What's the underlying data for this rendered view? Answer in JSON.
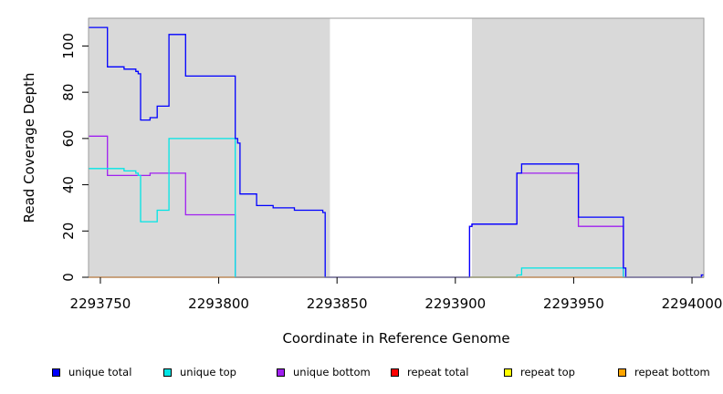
{
  "chart_data": {
    "type": "line",
    "xlabel": "Coordinate in Reference Genome",
    "ylabel": "Read Coverage Depth",
    "xlim": [
      2293745,
      2294005
    ],
    "ylim": [
      0,
      112
    ],
    "x_ticks": [
      2293750,
      2293800,
      2293850,
      2293900,
      2293950,
      2294000
    ],
    "y_ticks": [
      0,
      20,
      40,
      60,
      80,
      100
    ],
    "shaded_regions": [
      [
        2293745,
        2293847
      ],
      [
        2293907,
        2294005
      ]
    ],
    "shade_color": "#d9d9d9",
    "series": [
      {
        "name": "unique total",
        "color": "#0000ff",
        "style": "step",
        "points": [
          [
            2293745,
            108
          ],
          [
            2293753,
            108
          ],
          [
            2293753,
            91
          ],
          [
            2293760,
            91
          ],
          [
            2293760,
            90
          ],
          [
            2293765,
            90
          ],
          [
            2293765,
            89
          ],
          [
            2293766,
            89
          ],
          [
            2293766,
            88
          ],
          [
            2293767,
            88
          ],
          [
            2293767,
            68
          ],
          [
            2293771,
            68
          ],
          [
            2293771,
            69
          ],
          [
            2293774,
            69
          ],
          [
            2293774,
            74
          ],
          [
            2293779,
            74
          ],
          [
            2293779,
            105
          ],
          [
            2293786,
            105
          ],
          [
            2293786,
            87
          ],
          [
            2293807,
            87
          ],
          [
            2293807,
            60
          ],
          [
            2293808,
            60
          ],
          [
            2293808,
            58
          ],
          [
            2293809,
            58
          ],
          [
            2293809,
            36
          ],
          [
            2293816,
            36
          ],
          [
            2293816,
            31
          ],
          [
            2293823,
            31
          ],
          [
            2293823,
            30
          ],
          [
            2293832,
            30
          ],
          [
            2293832,
            29
          ],
          [
            2293844,
            29
          ],
          [
            2293844,
            28
          ],
          [
            2293845,
            28
          ],
          [
            2293845,
            0
          ],
          [
            2293906,
            0
          ],
          [
            2293906,
            22
          ],
          [
            2293907,
            22
          ],
          [
            2293907,
            23
          ],
          [
            2293926,
            23
          ],
          [
            2293926,
            45
          ],
          [
            2293928,
            45
          ],
          [
            2293928,
            49
          ],
          [
            2293952,
            49
          ],
          [
            2293952,
            26
          ],
          [
            2293971,
            26
          ],
          [
            2293971,
            4
          ],
          [
            2293972,
            4
          ],
          [
            2293972,
            0
          ],
          [
            2294004,
            0
          ],
          [
            2294004,
            1
          ],
          [
            2294005,
            1
          ]
        ]
      },
      {
        "name": "unique top",
        "color": "#00e5e5",
        "style": "step",
        "points": [
          [
            2293745,
            47
          ],
          [
            2293760,
            47
          ],
          [
            2293760,
            46
          ],
          [
            2293765,
            46
          ],
          [
            2293765,
            45
          ],
          [
            2293766,
            45
          ],
          [
            2293766,
            44
          ],
          [
            2293767,
            44
          ],
          [
            2293767,
            24
          ],
          [
            2293774,
            24
          ],
          [
            2293774,
            29
          ],
          [
            2293779,
            29
          ],
          [
            2293779,
            60
          ],
          [
            2293807,
            60
          ],
          [
            2293807,
            0
          ],
          [
            2293926,
            0
          ],
          [
            2293926,
            1
          ],
          [
            2293928,
            1
          ],
          [
            2293928,
            4
          ],
          [
            2293971,
            4
          ],
          [
            2293971,
            0
          ],
          [
            2294005,
            0
          ]
        ]
      },
      {
        "name": "unique bottom",
        "color": "#a020f0",
        "style": "step",
        "points": [
          [
            2293745,
            61
          ],
          [
            2293753,
            61
          ],
          [
            2293753,
            44
          ],
          [
            2293771,
            44
          ],
          [
            2293771,
            45
          ],
          [
            2293786,
            45
          ],
          [
            2293786,
            27
          ],
          [
            2293807,
            27
          ],
          [
            2293807,
            0
          ],
          [
            2293906,
            0
          ],
          [
            2293906,
            22
          ],
          [
            2293907,
            22
          ],
          [
            2293907,
            23
          ],
          [
            2293926,
            23
          ],
          [
            2293926,
            45
          ],
          [
            2293952,
            45
          ],
          [
            2293952,
            22
          ],
          [
            2293971,
            22
          ],
          [
            2293971,
            0
          ],
          [
            2294004,
            0
          ],
          [
            2294004,
            1
          ],
          [
            2294005,
            1
          ]
        ]
      },
      {
        "name": "repeat total",
        "color": "#ff0000",
        "style": "step",
        "points": [
          [
            2293745,
            0
          ],
          [
            2294005,
            0
          ]
        ]
      },
      {
        "name": "repeat top",
        "color": "#ffff00",
        "style": "step",
        "points": [
          [
            2293745,
            0
          ],
          [
            2294005,
            0
          ]
        ]
      },
      {
        "name": "repeat bottom",
        "color": "#ffa500",
        "style": "step",
        "points": [
          [
            2293745,
            0
          ],
          [
            2294005,
            0
          ]
        ]
      }
    ],
    "legend_position": "bottom"
  }
}
